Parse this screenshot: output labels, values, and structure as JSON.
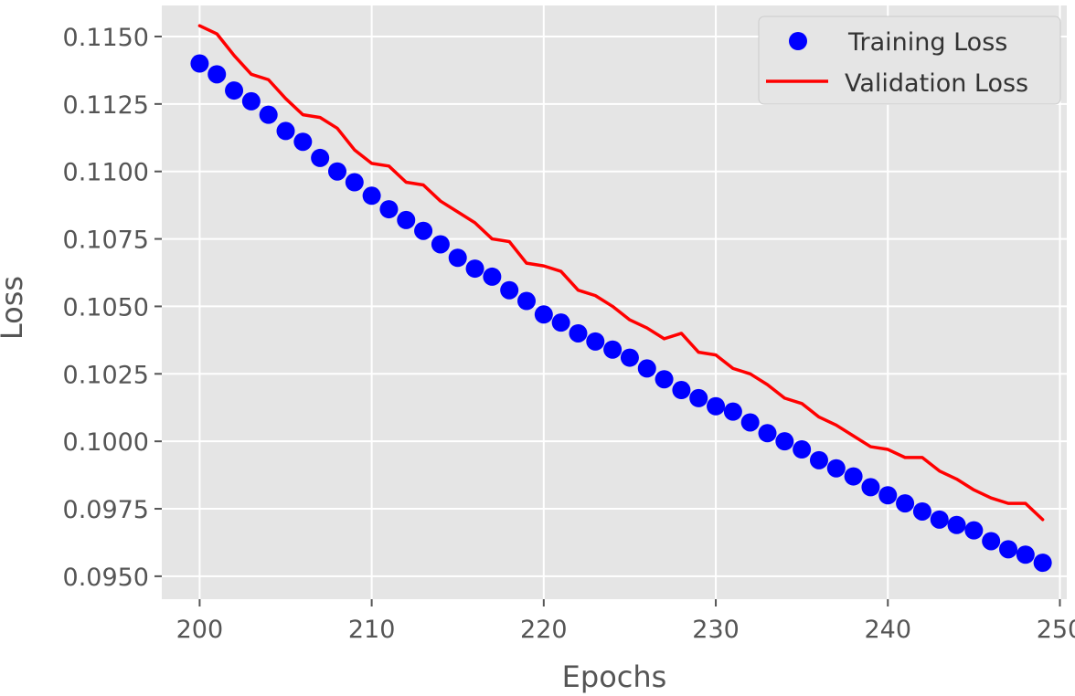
{
  "chart_data": {
    "type": "line",
    "xlabel": "Epochs",
    "ylabel": "Loss",
    "xlim": [
      197.8,
      250.4
    ],
    "ylim": [
      0.09415,
      0.11615
    ],
    "x_ticks": [
      200,
      210,
      220,
      230,
      240,
      250
    ],
    "x_tick_labels": [
      "200",
      "210",
      "220",
      "230",
      "240",
      "250"
    ],
    "y_ticks": [
      0.095,
      0.0975,
      0.1,
      0.1025,
      0.105,
      0.1075,
      0.11,
      0.1125,
      0.115
    ],
    "y_tick_labels": [
      "0.0950",
      "0.0975",
      "0.1000",
      "0.1025",
      "0.1050",
      "0.1075",
      "0.1100",
      "0.1125",
      "0.1150"
    ],
    "grid": true,
    "legend_position": "top-right",
    "x": [
      200,
      201,
      202,
      203,
      204,
      205,
      206,
      207,
      208,
      209,
      210,
      211,
      212,
      213,
      214,
      215,
      216,
      217,
      218,
      219,
      220,
      221,
      222,
      223,
      224,
      225,
      226,
      227,
      228,
      229,
      230,
      231,
      232,
      233,
      234,
      235,
      236,
      237,
      238,
      239,
      240,
      241,
      242,
      243,
      244,
      245,
      246,
      247,
      248,
      249
    ],
    "series": [
      {
        "name": "Training Loss",
        "style": "markers",
        "color": "#0000ff",
        "values": [
          0.114,
          0.1136,
          0.113,
          0.1126,
          0.1121,
          0.1115,
          0.1111,
          0.1105,
          0.11,
          0.1096,
          0.1091,
          0.1086,
          0.1082,
          0.1078,
          0.1073,
          0.1068,
          0.1064,
          0.1061,
          0.1056,
          0.1052,
          0.1047,
          0.1044,
          0.104,
          0.1037,
          0.1034,
          0.1031,
          0.1027,
          0.1023,
          0.1019,
          0.1016,
          0.1013,
          0.1011,
          0.1007,
          0.1003,
          0.1,
          0.0997,
          0.0993,
          0.099,
          0.0987,
          0.0983,
          0.098,
          0.0977,
          0.0974,
          0.0971,
          0.0969,
          0.0967,
          0.0963,
          0.096,
          0.0958,
          0.0955
        ]
      },
      {
        "name": "Validation Loss",
        "style": "line",
        "color": "#ff0000",
        "values": [
          0.1154,
          0.1151,
          0.1143,
          0.1136,
          0.1134,
          0.1127,
          0.1121,
          0.112,
          0.1116,
          0.1108,
          0.1103,
          0.1102,
          0.1096,
          0.1095,
          0.1089,
          0.1085,
          0.1081,
          0.1075,
          0.1074,
          0.1066,
          0.1065,
          0.1063,
          0.1056,
          0.1054,
          0.105,
          0.1045,
          0.1042,
          0.1038,
          0.104,
          0.1033,
          0.1032,
          0.1027,
          0.1025,
          0.1021,
          0.1016,
          0.1014,
          0.1009,
          0.1006,
          0.1002,
          0.0998,
          0.0997,
          0.0994,
          0.0994,
          0.0989,
          0.0986,
          0.0982,
          0.0979,
          0.0977,
          0.0977,
          0.0971
        ]
      }
    ]
  }
}
